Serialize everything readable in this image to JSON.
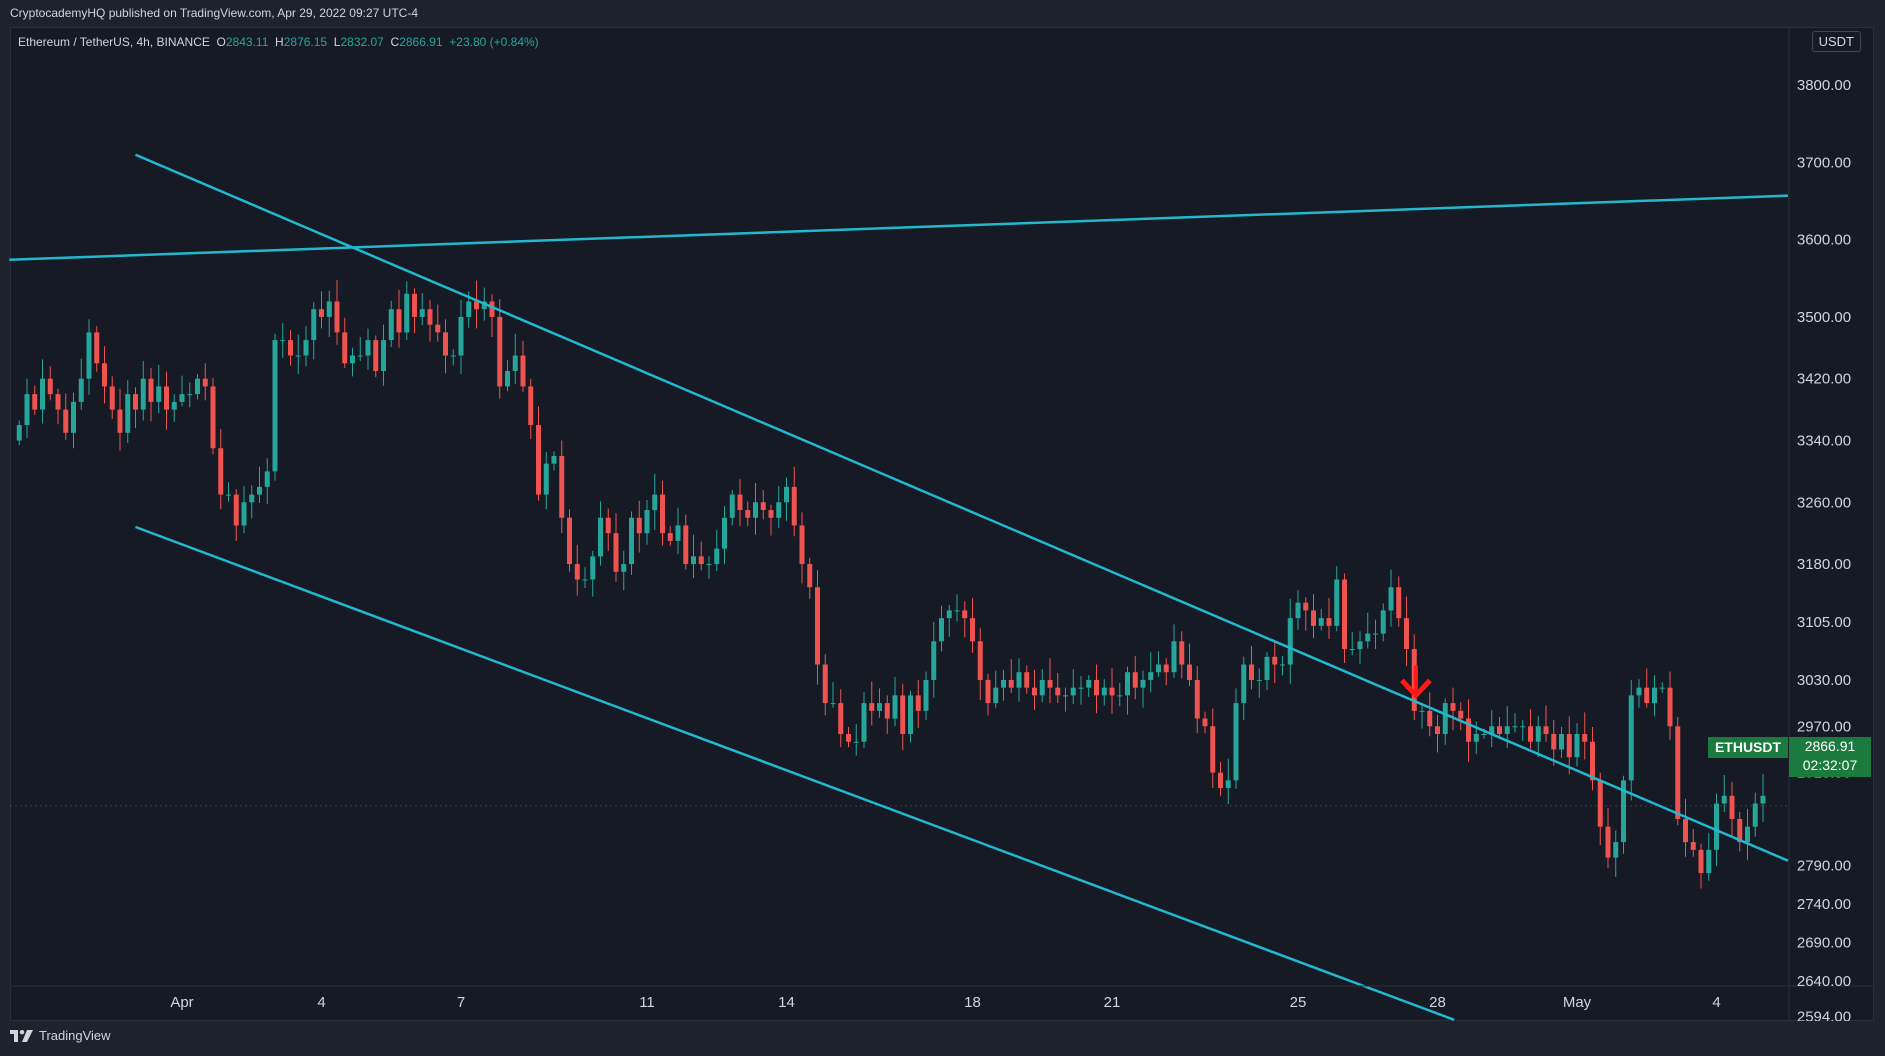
{
  "header": {
    "publish_line": "CryptocademyHQ published on TradingView.com, Apr 29, 2022 09:27 UTC-4"
  },
  "legend": {
    "symbol_desc": "Ethereum / TetherUS, 4h, BINANCE",
    "open_label": "O",
    "open": "2843.11",
    "high_label": "H",
    "high": "2876.15",
    "low_label": "L",
    "low": "2832.07",
    "close_label": "C",
    "close": "2866.91",
    "change": "+23.80 (+0.84%)"
  },
  "currency": "USDT",
  "symbol_label": "ETHUSDT",
  "last_price": "2866.91",
  "countdown": "02:32:07",
  "footer": {
    "brand": "TradingView"
  },
  "colors": {
    "up": "#26a69a",
    "down": "#ef5350",
    "trendline": "#22b8cf",
    "arrow": "#ff1a1a",
    "label_bg": "#1b7a3e",
    "background": "#161a25"
  },
  "chart_data": {
    "type": "candlestick",
    "interval": "4h",
    "y_ticks": [
      {
        "v": 3800,
        "label": "3800.00"
      },
      {
        "v": 3700,
        "label": "3700.00"
      },
      {
        "v": 3600,
        "label": "3600.00"
      },
      {
        "v": 3500,
        "label": "3500.00"
      },
      {
        "v": 3420,
        "label": "3420.00"
      },
      {
        "v": 3340,
        "label": "3340.00"
      },
      {
        "v": 3260,
        "label": "3260.00"
      },
      {
        "v": 3180,
        "label": "3180.00"
      },
      {
        "v": 3105,
        "label": "3105.00"
      },
      {
        "v": 3030,
        "label": "3030.00"
      },
      {
        "v": 2970,
        "label": "2970.00"
      },
      {
        "v": 2910,
        "label": "2910.00"
      },
      {
        "v": 2790,
        "label": "2790.00"
      },
      {
        "v": 2740,
        "label": "2740.00"
      },
      {
        "v": 2690,
        "label": "2690.00"
      },
      {
        "v": 2640,
        "label": "2640.00"
      },
      {
        "v": 2594,
        "label": "2594.00"
      }
    ],
    "x_ticks": [
      {
        "day": 1,
        "label": "Apr"
      },
      {
        "day": 4,
        "label": "4"
      },
      {
        "day": 7,
        "label": "7"
      },
      {
        "day": 11,
        "label": "11"
      },
      {
        "day": 14,
        "label": "14"
      },
      {
        "day": 18,
        "label": "18"
      },
      {
        "day": 21,
        "label": "21"
      },
      {
        "day": 25,
        "label": "25"
      },
      {
        "day": 28,
        "label": "28"
      },
      {
        "day": 31,
        "label": "May"
      },
      {
        "day": 34,
        "label": "4"
      }
    ],
    "trendlines": [
      {
        "name": "upper-horizontal",
        "p1": [
          -2.714,
          3574
        ],
        "p2": [
          35.536,
          3657
        ]
      },
      {
        "name": "channel-top",
        "p1": [
          0.0,
          3710
        ],
        "p2": [
          35.536,
          2796
        ]
      },
      {
        "name": "channel-bottom",
        "p1": [
          0.0,
          3228
        ],
        "p2": [
          28.357,
          2590
        ]
      }
    ],
    "arrow_marker": {
      "day": 27.536,
      "price": 3010
    },
    "last_price": 2866.91,
    "candles_close": [
      3360,
      3400,
      3380,
      3420,
      3400,
      3380,
      3350,
      3390,
      3420,
      3480,
      3440,
      3410,
      3380,
      3350,
      3400,
      3380,
      3420,
      3390,
      3410,
      3380,
      3390,
      3400,
      3400,
      3420,
      3410,
      3330,
      3270,
      3270,
      3230,
      3260,
      3270,
      3280,
      3300,
      3470,
      3470,
      3450,
      3450,
      3470,
      3510,
      3500,
      3520,
      3480,
      3440,
      3450,
      3450,
      3470,
      3430,
      3470,
      3510,
      3480,
      3530,
      3500,
      3510,
      3490,
      3480,
      3450,
      3450,
      3500,
      3520,
      3510,
      3520,
      3500,
      3410,
      3430,
      3450,
      3410,
      3360,
      3270,
      3310,
      3320,
      3240,
      3180,
      3160,
      3160,
      3190,
      3240,
      3220,
      3170,
      3180,
      3240,
      3220,
      3250,
      3270,
      3220,
      3210,
      3230,
      3180,
      3190,
      3180,
      3180,
      3200,
      3240,
      3270,
      3250,
      3240,
      3260,
      3250,
      3240,
      3260,
      3280,
      3230,
      3180,
      3150,
      3050,
      3000,
      3000,
      2960,
      2950,
      2950,
      3000,
      2990,
      3000,
      2980,
      3010,
      2960,
      3010,
      2990,
      3030,
      3080,
      3110,
      3120,
      3120,
      3110,
      3080,
      3030,
      3000,
      3020,
      3030,
      3020,
      3040,
      3020,
      3010,
      3030,
      3020,
      3010,
      3010,
      3020,
      3020,
      3030,
      3010,
      3020,
      3010,
      3010,
      3040,
      3020,
      3030,
      3040,
      3050,
      3040,
      3080,
      3050,
      3030,
      2980,
      2970,
      2910,
      2890,
      2900,
      3000,
      3050,
      3030,
      3030,
      3060,
      3050,
      3050,
      3110,
      3130,
      3120,
      3100,
      3110,
      3100,
      3160,
      3070,
      3070,
      3080,
      3090,
      3090,
      3120,
      3150,
      3110,
      3070,
      2990,
      2990,
      2970,
      2960,
      3000,
      2990,
      2980,
      2950,
      2960,
      2960,
      2970,
      2960,
      2970,
      2970,
      2970,
      2950,
      2970,
      2960,
      2940,
      2960,
      2930,
      2960,
      2950,
      2900,
      2840,
      2800,
      2820,
      2900,
      3010,
      3020,
      3000,
      3020,
      3020,
      2970,
      2850,
      2820,
      2810,
      2780,
      2810,
      2870,
      2880,
      2850,
      2820,
      2840,
      2870,
      2880,
      2860,
      2890,
      2940,
      2930,
      2970,
      2940,
      2880,
      2960,
      2960,
      2940,
      2950,
      2890,
      2840,
      2870
    ]
  }
}
